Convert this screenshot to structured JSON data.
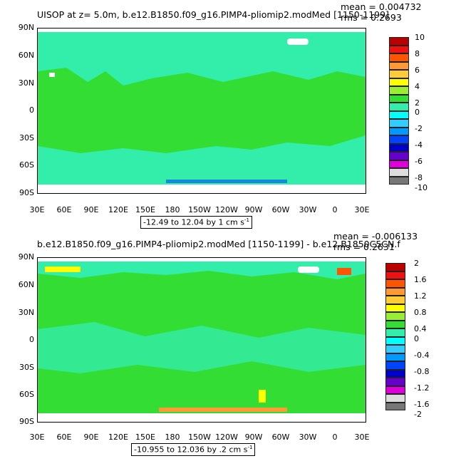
{
  "panel1": {
    "title": "UISOP at z=    5.0m, b.e12.B1850.f09_g16.PIMP4-pliomip2.modMed [1150-1199]",
    "mean": "mean = 0.004732",
    "rms": "rms = 0.2693",
    "range_text": "-12.49 to 12.04 by 1 cm s",
    "range_sup": "-1",
    "colorbar_labels": [
      "10",
      "8",
      "6",
      "4",
      "2",
      "0",
      "-2",
      "-4",
      "-6",
      "-8",
      "-10"
    ],
    "colorbar_colors": [
      "#bb0000",
      "#ee1111",
      "#ff5500",
      "#ff9933",
      "#ffcc33",
      "#ffff00",
      "#99ee33",
      "#33dd33",
      "#33eeaa",
      "#00ffff",
      "#33ccff",
      "#0099ff",
      "#0044ff",
      "#0000cc",
      "#6600cc",
      "#dd00dd",
      "#dddddd",
      "#777777"
    ]
  },
  "panel2": {
    "title": "b.e12.B1850.f09_g16.PIMP4-pliomip2.modMed [1150-1199] - b.e12.B1850C5CN.f",
    "mean": "mean = -0.006133",
    "rms": "rms = 0.2631",
    "range_text": "-10.955 to 12.036 by .2 cm s",
    "range_sup": "-1",
    "colorbar_labels": [
      "2",
      "1.6",
      "1.2",
      "0.8",
      "0.4",
      "0",
      "-0.4",
      "-0.8",
      "-1.2",
      "-1.6",
      "-2"
    ],
    "colorbar_colors": [
      "#bb0000",
      "#ee1111",
      "#ff5500",
      "#ff9933",
      "#ffcc33",
      "#ffff00",
      "#99ee33",
      "#33dd33",
      "#33eeaa",
      "#00ffff",
      "#33ccff",
      "#0099ff",
      "#0044ff",
      "#0000cc",
      "#6600cc",
      "#dd00dd",
      "#dddddd",
      "#777777"
    ]
  },
  "axes": {
    "lat_labels": [
      "90N",
      "60N",
      "30N",
      "0",
      "30S",
      "60S",
      "90S"
    ],
    "lon_labels": [
      "30E",
      "60E",
      "90E",
      "120E",
      "150E",
      "180",
      "150W",
      "120W",
      "90W",
      "60W",
      "30W",
      "0",
      "30E"
    ]
  },
  "colors": {
    "ocean_zero": "#33dd33",
    "ocean_small_neg": "#33eeaa",
    "land": "#ffffff"
  }
}
